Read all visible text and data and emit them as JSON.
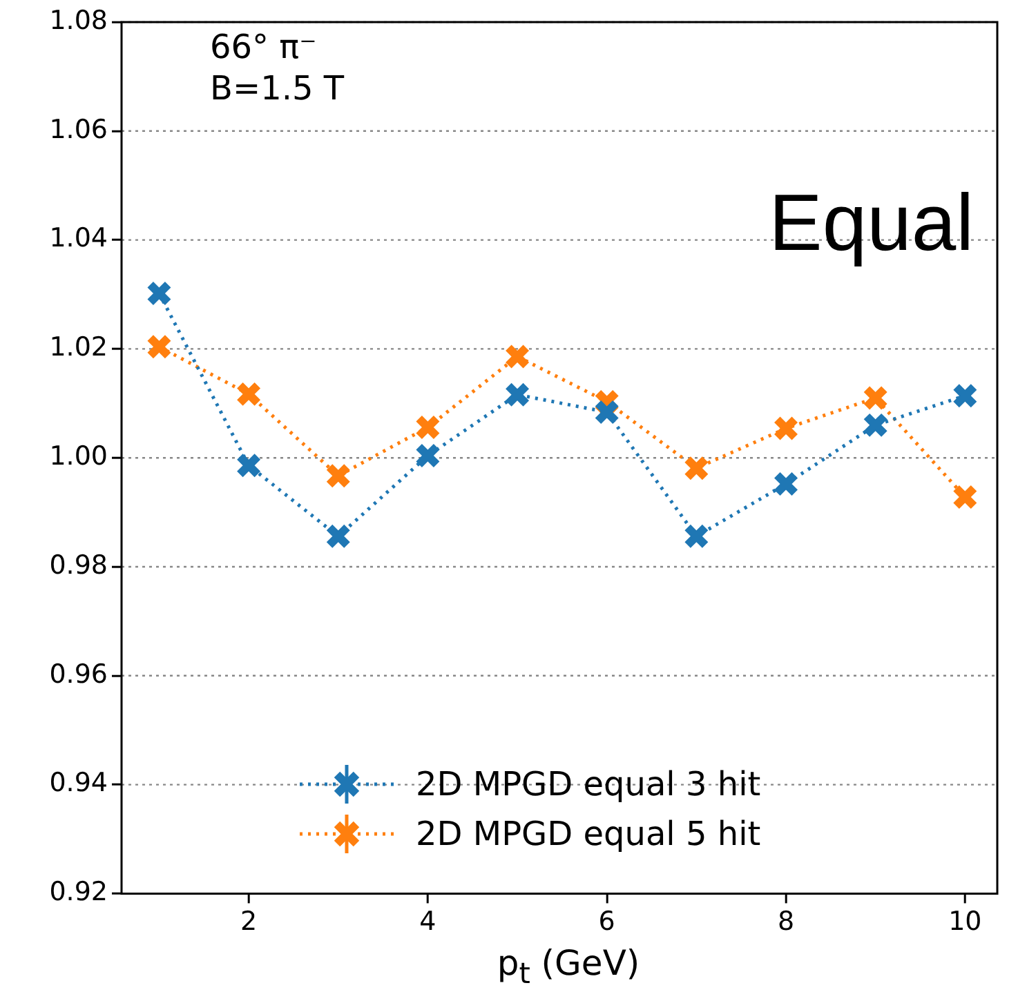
{
  "chart_data": {
    "type": "line",
    "xlabel": "p$_{t}$ (GeV)",
    "x": [
      1,
      2,
      3,
      4,
      5,
      6,
      7,
      8,
      9,
      10
    ],
    "xlim": [
      0.58,
      10.36
    ],
    "xticks": [
      2,
      4,
      6,
      8,
      10
    ],
    "ylim": [
      0.92,
      1.08
    ],
    "yticks": [
      {
        "value": 0.92,
        "label": "0.92"
      },
      {
        "value": 0.94,
        "label": "0.94"
      },
      {
        "value": 0.96,
        "label": "0.96"
      },
      {
        "value": 0.98,
        "label": "0.98"
      },
      {
        "value": 1.0,
        "label": "1.00"
      },
      {
        "value": 1.02,
        "label": "1.02"
      },
      {
        "value": 1.04,
        "label": "1.04"
      },
      {
        "value": 1.06,
        "label": "1.06"
      },
      {
        "value": 1.08,
        "label": "1.08"
      }
    ],
    "series": [
      {
        "name": "2D MPGD equal 3 hit",
        "color": "#1f77b4",
        "values": [
          1.0302,
          0.9986,
          0.9856,
          1.0004,
          1.0116,
          1.0084,
          0.9856,
          0.9952,
          1.006,
          1.0114
        ]
      },
      {
        "name": "2D MPGD equal 5 hit",
        "color": "#ff7f0e",
        "values": [
          1.0204,
          1.0117,
          0.9967,
          1.0056,
          1.0186,
          1.0103,
          0.9981,
          1.0054,
          1.011,
          0.9928
        ]
      }
    ],
    "annotations": [
      "66° π⁻",
      "B=1.5 T",
      "Equal"
    ],
    "grid": "y",
    "legend": "bottom",
    "marker": "cross",
    "line_style": "dotted"
  }
}
